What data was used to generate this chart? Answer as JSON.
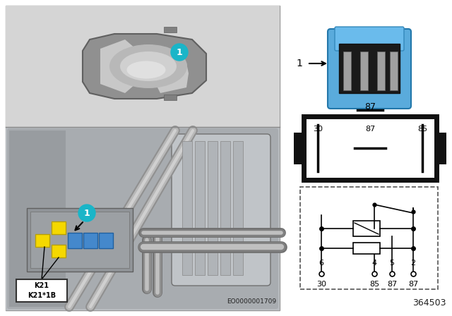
{
  "bg_color": "#ffffff",
  "panel_border": "#999999",
  "top_bg": "#d8d8d8",
  "car_body_color": "#888888",
  "car_dark": "#666666",
  "car_window_color": "#cccccc",
  "car_roof_color": "#aaaaaa",
  "engine_bg": "#b0b0b8",
  "cyan_label": "#1ab5c8",
  "relay_blue": "#5aabdc",
  "relay_dark": "#222222",
  "yellow": "#f5d800",
  "blue_relay": "#4488cc",
  "k21_box_bg": "#ffffff",
  "eo_text": "EO0000001709",
  "part_no": "364503",
  "k_label": "K21\nK21*1B",
  "pin_top": "87",
  "pin_mid_left": "30",
  "pin_mid_center": "87",
  "pin_mid_right": "85",
  "sch_pins": [
    "6",
    "4",
    "5",
    "2"
  ],
  "sch_labels": [
    "30",
    "85 87 87",
    "",
    ""
  ]
}
